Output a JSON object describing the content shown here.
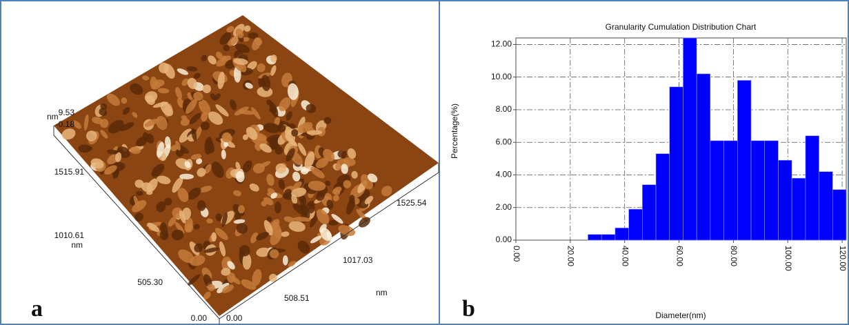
{
  "panel_a": {
    "letter": "a",
    "labels": [
      "nm",
      "9.53",
      "-0.18",
      "1515.91",
      "1010.61",
      "nm",
      "505.30",
      "0.00",
      "0.00",
      "508.51",
      "1017.03",
      "1525.54",
      "nm"
    ]
  },
  "panel_b": {
    "letter": "b"
  },
  "chart_data": {
    "type": "histogram",
    "title": "Granularity Cumulation Distribution  Chart",
    "x_label": "Diameter(nm)",
    "y_label": "Percentage(%)",
    "bins": [
      26.5,
      31.5,
      36.5,
      41.5,
      46.5,
      51.5,
      56.5,
      61.5,
      66.5,
      71.5,
      76.5,
      81.5,
      86.5,
      91.5,
      96.5,
      101.5,
      106.5,
      111.5,
      116.5,
      121.5
    ],
    "values": [
      0.35,
      0.35,
      0.75,
      1.9,
      3.4,
      5.3,
      9.4,
      12.4,
      10.2,
      6.1,
      6.1,
      9.8,
      6.1,
      6.1,
      4.9,
      3.8,
      6.4,
      4.2,
      3.1
    ],
    "color": "#0000ff",
    "xlim": [
      0,
      121.5
    ],
    "ylim": [
      0,
      12.4
    ],
    "xticks": [
      {
        "value": 0,
        "label": "0.00"
      },
      {
        "value": 20,
        "label": "20.00"
      },
      {
        "value": 40,
        "label": "40.00"
      },
      {
        "value": 60,
        "label": "60.00"
      },
      {
        "value": 80,
        "label": "80.00"
      },
      {
        "value": 100,
        "label": "100.00"
      },
      {
        "value": 120,
        "label": "120.00"
      }
    ],
    "yticks": [
      {
        "value": 0,
        "label": "0.00"
      },
      {
        "value": 2,
        "label": "2.00"
      },
      {
        "value": 4,
        "label": "4.00"
      },
      {
        "value": 6,
        "label": "6.00"
      },
      {
        "value": 8,
        "label": "8.00"
      },
      {
        "value": 10,
        "label": "10.00"
      },
      {
        "value": 12,
        "label": "12.00"
      }
    ],
    "grid": true
  }
}
